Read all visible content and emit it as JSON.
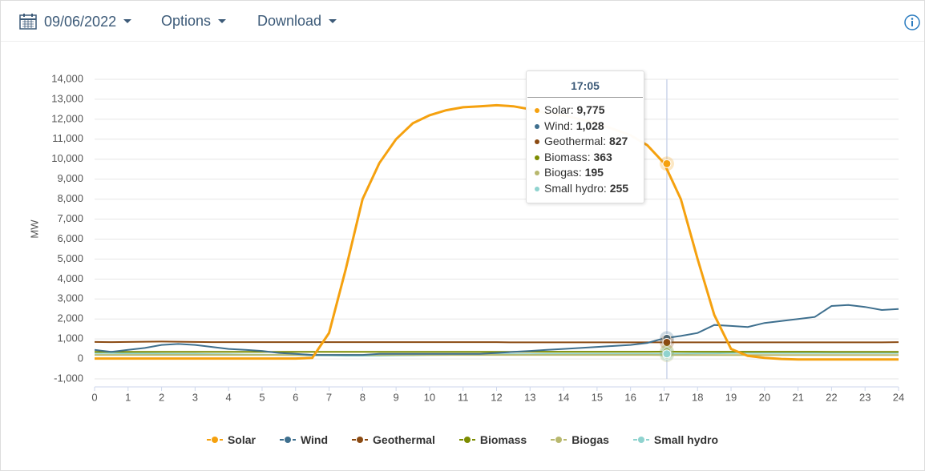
{
  "toolbar": {
    "date": "09/06/2022",
    "options": "Options",
    "download": "Download"
  },
  "chart_data": {
    "type": "line",
    "ylabel": "MW",
    "x": [
      0,
      0.5,
      1,
      1.5,
      2,
      2.5,
      3,
      3.5,
      4,
      4.5,
      5,
      5.5,
      6,
      6.5,
      7,
      7.5,
      8,
      8.5,
      9,
      9.5,
      10,
      10.5,
      11,
      11.5,
      12,
      12.5,
      13,
      13.5,
      14,
      14.5,
      15,
      15.5,
      16,
      16.5,
      17,
      17.5,
      18,
      18.5,
      19,
      19.5,
      20,
      20.5,
      21,
      21.5,
      22,
      22.5,
      23,
      23.5,
      24
    ],
    "xlim": [
      0,
      24
    ],
    "xticks": [
      0,
      1,
      2,
      3,
      4,
      5,
      6,
      7,
      8,
      9,
      10,
      11,
      12,
      13,
      14,
      15,
      16,
      17,
      18,
      19,
      20,
      21,
      22,
      23,
      24
    ],
    "ylim": [
      -1000,
      14000
    ],
    "yticks": [
      {
        "value": -1000,
        "label": "-1,000"
      },
      0,
      {
        "value": 1000,
        "label": "1,000"
      },
      {
        "value": 2000,
        "label": "2,000"
      },
      {
        "value": 3000,
        "label": "3,000"
      },
      {
        "value": 4000,
        "label": "4,000"
      },
      {
        "value": 5000,
        "label": "5,000"
      },
      {
        "value": 6000,
        "label": "6,000"
      },
      {
        "value": 7000,
        "label": "7,000"
      },
      {
        "value": 8000,
        "label": "8,000"
      },
      {
        "value": 9000,
        "label": "9,000"
      },
      {
        "value": 10000,
        "label": "10,000"
      },
      {
        "value": 11000,
        "label": "11,000"
      },
      {
        "value": 12000,
        "label": "12,000"
      },
      {
        "value": 13000,
        "label": "13,000"
      },
      {
        "value": 14000,
        "label": "14,000"
      }
    ],
    "grid": true,
    "series": [
      {
        "name": "Solar",
        "color": "#f5a10f",
        "values": [
          20,
          20,
          20,
          20,
          20,
          20,
          20,
          20,
          20,
          20,
          20,
          20,
          20,
          50,
          1300,
          4500,
          8000,
          9800,
          11000,
          11800,
          12200,
          12450,
          12600,
          12650,
          12700,
          12650,
          12500,
          12300,
          12200,
          12000,
          11800,
          11500,
          11200,
          10700,
          9800,
          8000,
          5000,
          2200,
          500,
          150,
          50,
          0,
          -30,
          -30,
          -30,
          -30,
          -30,
          -30,
          -30
        ]
      },
      {
        "name": "Wind",
        "color": "#3e6f8e",
        "values": [
          450,
          350,
          450,
          550,
          700,
          750,
          700,
          600,
          500,
          450,
          400,
          300,
          250,
          200,
          200,
          200,
          200,
          250,
          250,
          250,
          250,
          250,
          250,
          250,
          300,
          350,
          400,
          450,
          500,
          550,
          600,
          650,
          700,
          800,
          1028,
          1150,
          1300,
          1700,
          1650,
          1600,
          1800,
          1900,
          2000,
          2100,
          2650,
          2700,
          2600,
          2450,
          2500
        ]
      },
      {
        "name": "Geothermal",
        "color": "#8b4a12",
        "values": [
          850,
          840,
          850,
          860,
          870,
          860,
          850,
          840,
          840,
          840,
          840,
          840,
          840,
          840,
          840,
          840,
          840,
          840,
          840,
          840,
          840,
          840,
          840,
          840,
          840,
          830,
          830,
          830,
          830,
          830,
          830,
          830,
          830,
          830,
          827,
          830,
          830,
          830,
          830,
          830,
          830,
          830,
          830,
          830,
          830,
          830,
          830,
          830,
          840
        ]
      },
      {
        "name": "Biomass",
        "color": "#7c8c00",
        "values": [
          350,
          350,
          350,
          350,
          350,
          350,
          350,
          350,
          350,
          350,
          350,
          350,
          350,
          350,
          350,
          350,
          350,
          350,
          350,
          350,
          350,
          350,
          350,
          350,
          350,
          350,
          360,
          360,
          360,
          360,
          360,
          360,
          360,
          360,
          363,
          360,
          360,
          360,
          360,
          360,
          360,
          360,
          360,
          360,
          350,
          350,
          350,
          350,
          350
        ]
      },
      {
        "name": "Biogas",
        "color": "#b8b86e",
        "values": [
          200,
          200,
          200,
          200,
          200,
          200,
          200,
          200,
          200,
          200,
          200,
          200,
          200,
          200,
          200,
          200,
          200,
          200,
          200,
          200,
          200,
          200,
          200,
          200,
          200,
          200,
          200,
          200,
          200,
          200,
          200,
          200,
          200,
          200,
          195,
          195,
          195,
          195,
          195,
          195,
          195,
          195,
          195,
          195,
          195,
          195,
          195,
          195,
          195
        ]
      },
      {
        "name": "Small hydro",
        "color": "#8fd3cf",
        "values": [
          300,
          290,
          280,
          270,
          260,
          250,
          250,
          240,
          230,
          220,
          210,
          200,
          190,
          180,
          170,
          160,
          160,
          160,
          170,
          180,
          190,
          200,
          210,
          220,
          230,
          240,
          240,
          250,
          250,
          250,
          250,
          250,
          250,
          255,
          255,
          260,
          270,
          280,
          290,
          300,
          300,
          300,
          300,
          300,
          300,
          300,
          300,
          300,
          300
        ]
      }
    ],
    "tooltip": {
      "title": "17:05",
      "values": [
        9775,
        1028,
        827,
        363,
        195,
        255
      ],
      "value_labels": [
        "9,775",
        "1,028",
        "827",
        "363",
        "195",
        "255"
      ]
    }
  }
}
